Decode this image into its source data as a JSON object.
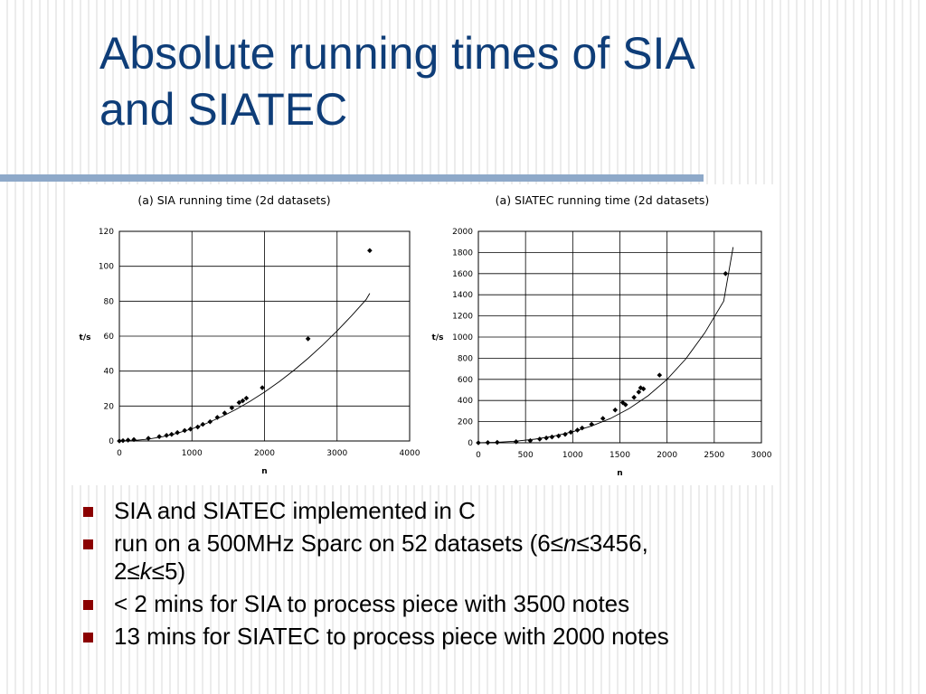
{
  "slide": {
    "title_line1": "Absolute running times of SIA",
    "title_line2": "and SIATEC"
  },
  "bullets": [
    {
      "text": "SIA and SIATEC implemented in C"
    },
    {
      "prefix": "run on a 500MHz Sparc on 52 datasets (6≤",
      "n_var": "n",
      "mid": "≤3456,",
      "prefix2": "2≤",
      "k_var": "k",
      "suffix": "≤5)"
    },
    {
      "text": "< 2 mins for SIA to process piece with 3500 notes"
    },
    {
      "text": "13 mins for SIATEC to process piece with 2000 notes"
    }
  ],
  "colors": {
    "title": "#0e3d78",
    "rule": "#8ea9c9",
    "bullet": "#8b0000"
  },
  "chart_data": [
    {
      "type": "scatter",
      "title": "(a) SIA running time (2d datasets)",
      "xlabel": "n",
      "ylabel": "t/s",
      "xlim": [
        0,
        4000
      ],
      "ylim": [
        0,
        120
      ],
      "xticks": [
        0,
        1000,
        2000,
        3000,
        4000
      ],
      "yticks": [
        0,
        20,
        40,
        60,
        80,
        100,
        120
      ],
      "grid": true,
      "trendline": "power",
      "points": [
        [
          0,
          0
        ],
        [
          50,
          0.2
        ],
        [
          120,
          0.5
        ],
        [
          200,
          0.8
        ],
        [
          400,
          1.5
        ],
        [
          550,
          2.5
        ],
        [
          650,
          3.2
        ],
        [
          720,
          3.8
        ],
        [
          800,
          4.8
        ],
        [
          900,
          6
        ],
        [
          980,
          6.8
        ],
        [
          1080,
          8
        ],
        [
          1150,
          9.5
        ],
        [
          1250,
          11
        ],
        [
          1350,
          13.5
        ],
        [
          1450,
          16
        ],
        [
          1550,
          19
        ],
        [
          1650,
          22
        ],
        [
          1700,
          23
        ],
        [
          1750,
          24.5
        ],
        [
          1970,
          30.5
        ],
        [
          2600,
          58.5
        ],
        [
          3450,
          109
        ]
      ],
      "curve": [
        [
          0,
          0
        ],
        [
          200,
          0.3
        ],
        [
          400,
          1.1
        ],
        [
          600,
          2.5
        ],
        [
          800,
          4.5
        ],
        [
          1000,
          7
        ],
        [
          1200,
          10.1
        ],
        [
          1400,
          13.7
        ],
        [
          1600,
          17.9
        ],
        [
          1800,
          22.7
        ],
        [
          2000,
          28
        ],
        [
          2200,
          33.9
        ],
        [
          2400,
          40.3
        ],
        [
          2600,
          47.3
        ],
        [
          2800,
          54.9
        ],
        [
          3000,
          63
        ],
        [
          3200,
          71.7
        ],
        [
          3400,
          80.9
        ],
        [
          3450,
          84.5
        ]
      ]
    },
    {
      "type": "scatter",
      "title": "(a) SIATEC running time (2d datasets)",
      "xlabel": "n",
      "ylabel": "t/s",
      "xlim": [
        0,
        3000
      ],
      "ylim": [
        0,
        2000
      ],
      "xticks": [
        0,
        500,
        1000,
        1500,
        2000,
        2500,
        3000
      ],
      "yticks": [
        0,
        200,
        400,
        600,
        800,
        1000,
        1200,
        1400,
        1600,
        1800,
        2000
      ],
      "grid": true,
      "trendline": "power",
      "points": [
        [
          0,
          0
        ],
        [
          100,
          2
        ],
        [
          200,
          4
        ],
        [
          400,
          10
        ],
        [
          550,
          20
        ],
        [
          650,
          35
        ],
        [
          720,
          45
        ],
        [
          780,
          55
        ],
        [
          850,
          65
        ],
        [
          920,
          80
        ],
        [
          980,
          100
        ],
        [
          1050,
          120
        ],
        [
          1100,
          140
        ],
        [
          1200,
          175
        ],
        [
          1320,
          230
        ],
        [
          1450,
          310
        ],
        [
          1530,
          380
        ],
        [
          1560,
          360
        ],
        [
          1650,
          430
        ],
        [
          1700,
          480
        ],
        [
          1720,
          520
        ],
        [
          1750,
          510
        ],
        [
          1920,
          640
        ],
        [
          2620,
          1600
        ]
      ],
      "curve": [
        [
          0,
          0
        ],
        [
          200,
          5
        ],
        [
          400,
          15
        ],
        [
          600,
          34
        ],
        [
          800,
          63
        ],
        [
          1000,
          104
        ],
        [
          1200,
          159
        ],
        [
          1400,
          230
        ],
        [
          1600,
          325
        ],
        [
          1800,
          445
        ],
        [
          2000,
          600
        ],
        [
          2200,
          795
        ],
        [
          2400,
          1040
        ],
        [
          2600,
          1340
        ],
        [
          2700,
          1850
        ]
      ]
    }
  ]
}
